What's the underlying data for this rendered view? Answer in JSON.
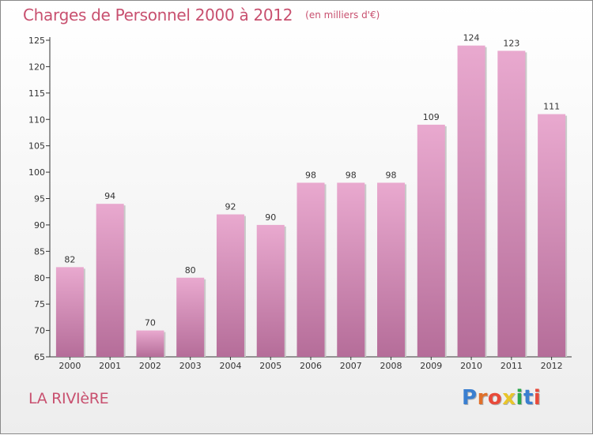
{
  "title": "Charges de Personnel 2000 à 2012",
  "title_units": "(en milliers d'€)",
  "location": "LA RIVIèRE",
  "logo": {
    "text": "Proxiti",
    "letter_colors": [
      "#3a7fd0",
      "#e0702a",
      "#e84a3a",
      "#e8c52a",
      "#2aa84a",
      "#3a7fd0",
      "#e84a3a"
    ]
  },
  "colors": {
    "title": "#c8506f",
    "bar_top": "#e9a9cf",
    "bar_bottom": "#b56d99",
    "axis": "#333333"
  },
  "chart_data": {
    "type": "bar",
    "categories": [
      "2000",
      "2001",
      "2002",
      "2003",
      "2004",
      "2005",
      "2006",
      "2007",
      "2008",
      "2009",
      "2010",
      "2011",
      "2012"
    ],
    "values": [
      82,
      94,
      70,
      80,
      92,
      90,
      98,
      98,
      98,
      109,
      124,
      123,
      111
    ],
    "data_labels": [
      "82",
      "94",
      "70",
      "80",
      "92",
      "90",
      "98",
      "98",
      "98",
      "109",
      "124",
      "123",
      "111"
    ],
    "ylim": [
      65,
      125
    ],
    "yticks": [
      65,
      70,
      75,
      80,
      85,
      90,
      95,
      100,
      105,
      110,
      115,
      120,
      125
    ],
    "grid": false,
    "xlabel": "",
    "ylabel": ""
  }
}
